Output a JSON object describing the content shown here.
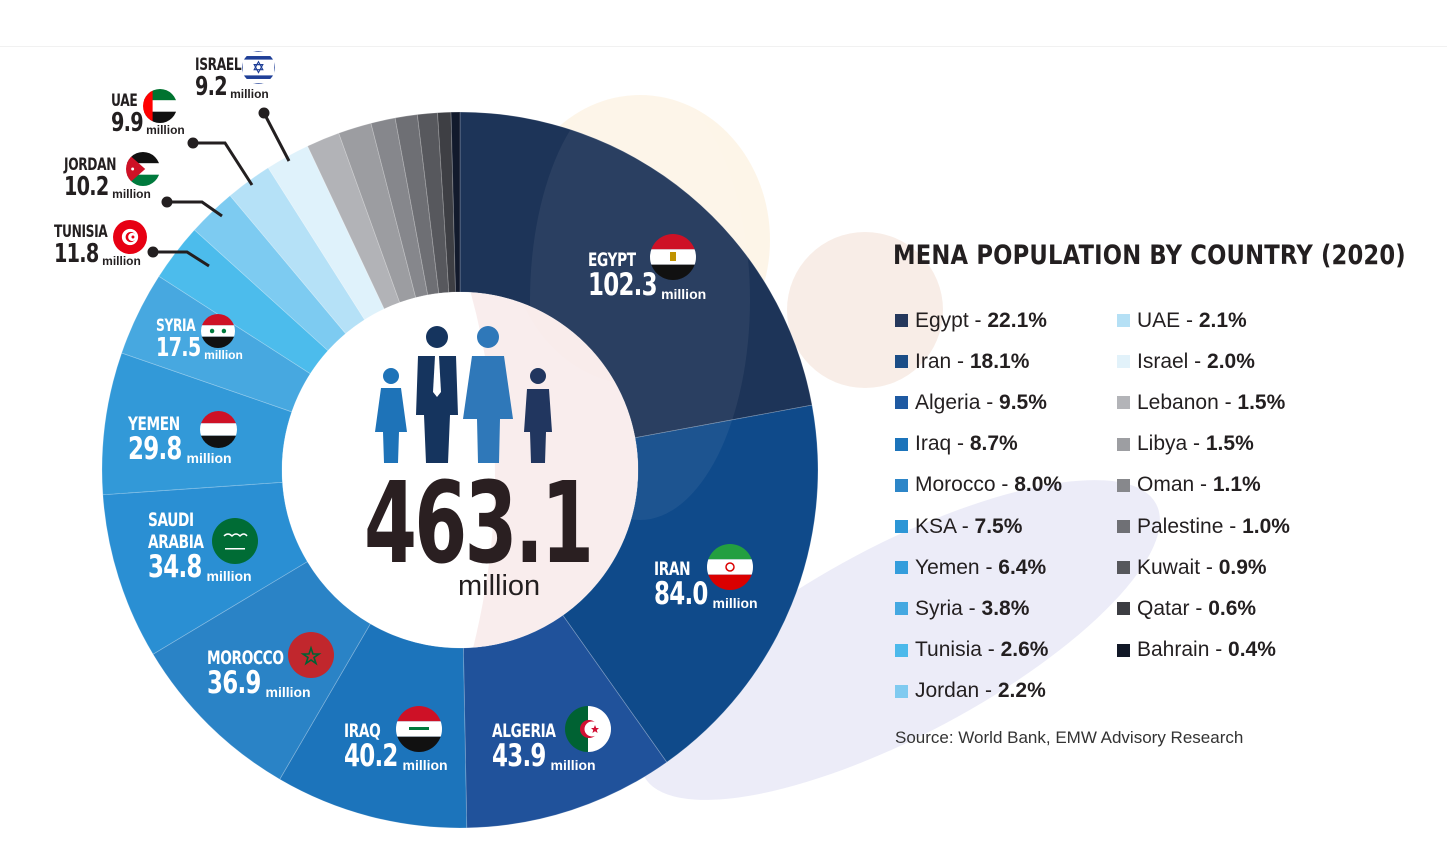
{
  "chart_data": {
    "type": "pie",
    "variant": "donut",
    "title": "MENA POPULATION BY COUNTRY (2020)",
    "center_label": {
      "value": "463.1",
      "unit": "million"
    },
    "total_million": 463.1,
    "unit": "million",
    "categories": [
      "Egypt",
      "Iran",
      "Algeria",
      "Iraq",
      "Morocco",
      "KSA",
      "Yemen",
      "Syria",
      "Tunisia",
      "Jordan",
      "UAE",
      "Israel",
      "Lebanon",
      "Libya",
      "Oman",
      "Palestine",
      "Kuwait",
      "Qatar",
      "Bahrain"
    ],
    "values_percent": [
      22.1,
      18.1,
      9.5,
      8.7,
      8.0,
      7.5,
      6.4,
      3.8,
      2.6,
      2.2,
      2.1,
      2.0,
      1.5,
      1.5,
      1.1,
      1.0,
      0.9,
      0.6,
      0.4
    ],
    "values_million": [
      102.3,
      84.0,
      43.9,
      40.2,
      36.9,
      34.8,
      29.8,
      17.5,
      11.8,
      10.2,
      9.9,
      9.2,
      null,
      null,
      null,
      null,
      null,
      null,
      null
    ],
    "colors": [
      "#1d3458",
      "#0f4a8a",
      "#20529b",
      "#1c74bb",
      "#2a83c6",
      "#2a8fd3",
      "#3299d8",
      "#47a8e0",
      "#4cbcec",
      "#7dcbf1",
      "#b5e1f7",
      "#dff2fb",
      "#b2b3b7",
      "#9c9da1",
      "#86878c",
      "#6e6f74",
      "#57585d",
      "#3e3f44",
      "#121a2c"
    ],
    "source": "Source: World Bank, EMW Advisory Research"
  },
  "slice_labels": [
    {
      "name": "EGYPT",
      "value": "102.3",
      "unit": "million"
    },
    {
      "name": "IRAN",
      "value": "84.0",
      "unit": "million"
    },
    {
      "name": "ALGERIA",
      "value": "43.9",
      "unit": "million"
    },
    {
      "name": "IRAQ",
      "value": "40.2",
      "unit": "million"
    },
    {
      "name": "MOROCCO",
      "value": "36.9",
      "unit": "million"
    },
    {
      "name": "SAUDI",
      "name2": "ARABIA",
      "value": "34.8",
      "unit": "million"
    },
    {
      "name": "YEMEN",
      "value": "29.8",
      "unit": "million"
    },
    {
      "name": "SYRIA",
      "value": "17.5",
      "unit": "million"
    },
    {
      "name": "TUNISIA",
      "value": "11.8",
      "unit": "million"
    },
    {
      "name": "JORDAN",
      "value": "10.2",
      "unit": "million"
    },
    {
      "name": "UAE",
      "value": "9.9",
      "unit": "million"
    },
    {
      "name": "ISRAEL",
      "value": "9.2",
      "unit": "million"
    }
  ],
  "legend": {
    "title": "MENA POPULATION BY COUNTRY (2020)",
    "left": [
      {
        "label": "Egypt - ",
        "pct": "22.1%",
        "color": "#25385c"
      },
      {
        "label": "Iran - ",
        "pct": "18.1%",
        "color": "#1b4d86"
      },
      {
        "label": "Algeria - ",
        "pct": "9.5%",
        "color": "#1f5aa2"
      },
      {
        "label": "Iraq - ",
        "pct": "8.7%",
        "color": "#1c74bb"
      },
      {
        "label": "Morocco - ",
        "pct": "8.0%",
        "color": "#2d86c8"
      },
      {
        "label": "KSA - ",
        "pct": "7.5%",
        "color": "#2c96d6"
      },
      {
        "label": "Yemen - ",
        "pct": "6.4%",
        "color": "#349ddc"
      },
      {
        "label": "Syria - ",
        "pct": "3.8%",
        "color": "#44a8e1"
      },
      {
        "label": "Tunisia - ",
        "pct": "2.6%",
        "color": "#4cb9eb"
      },
      {
        "label": "Jordan - ",
        "pct": "2.2%",
        "color": "#7fcaf0"
      }
    ],
    "right": [
      {
        "label": "UAE - ",
        "pct": "2.1%",
        "color": "#b5e0f5"
      },
      {
        "label": "Israel - ",
        "pct": "2.0%",
        "color": "#e2f2fa"
      },
      {
        "label": "Lebanon - ",
        "pct": "1.5%",
        "color": "#b3b4b8"
      },
      {
        "label": "Libya - ",
        "pct": "1.5%",
        "color": "#9d9ea2"
      },
      {
        "label": "Oman - ",
        "pct": "1.1%",
        "color": "#87888c"
      },
      {
        "label": "Palestine - ",
        "pct": "1.0%",
        "color": "#6f7075"
      },
      {
        "label": "Kuwait - ",
        "pct": "0.9%",
        "color": "#56575c"
      },
      {
        "label": "Qatar - ",
        "pct": "0.6%",
        "color": "#3c3d42"
      },
      {
        "label": "Bahrain - ",
        "pct": "0.4%",
        "color": "#111827"
      }
    ]
  },
  "source": "Source: World Bank, EMW Advisory Research",
  "icons": [
    "people-group-icon",
    "flag-egypt-icon",
    "flag-iran-icon",
    "flag-algeria-icon",
    "flag-iraq-icon",
    "flag-morocco-icon",
    "flag-saudi-arabia-icon",
    "flag-yemen-icon",
    "flag-syria-icon",
    "flag-tunisia-icon",
    "flag-jordan-icon",
    "flag-uae-icon",
    "flag-israel-icon"
  ]
}
